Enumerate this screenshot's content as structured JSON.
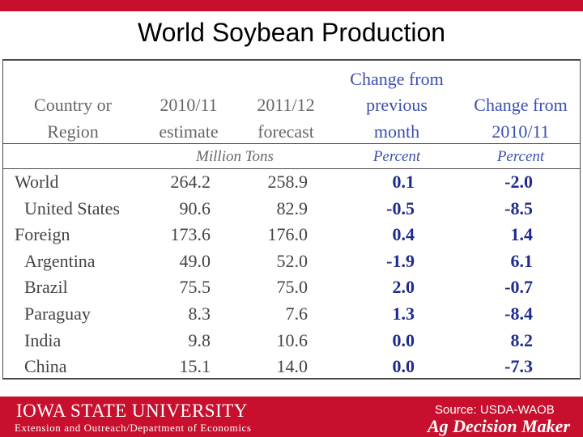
{
  "title": "World Soybean Production",
  "table": {
    "headers": {
      "region": [
        "Country or",
        "Region"
      ],
      "y2010": [
        "2010/11",
        "estimate"
      ],
      "y2011": [
        "2011/12",
        "forecast"
      ],
      "chg_month": [
        "Change from",
        "previous",
        "month"
      ],
      "chg_year": [
        "Change from",
        "2010/11"
      ]
    },
    "units": {
      "million_tons": "Million Tons",
      "percent_month": "Percent",
      "percent_year": "Percent"
    },
    "rows": [
      {
        "region": "World",
        "estimate": "264.2",
        "forecast": "258.9",
        "chg_month": "0.1",
        "chg_year": "-2.0"
      },
      {
        "region": "United States",
        "estimate": "90.6",
        "forecast": "82.9",
        "chg_month": "-0.5",
        "chg_year": "-8.5"
      },
      {
        "region": "Foreign",
        "estimate": "173.6",
        "forecast": "176.0",
        "chg_month": "0.4",
        "chg_year": "1.4"
      },
      {
        "region": "Argentina",
        "estimate": "49.0",
        "forecast": "52.0",
        "chg_month": "-1.9",
        "chg_year": "6.1"
      },
      {
        "region": "Brazil",
        "estimate": "75.5",
        "forecast": "75.0",
        "chg_month": "2.0",
        "chg_year": "-0.7"
      },
      {
        "region": "Paraguay",
        "estimate": "8.3",
        "forecast": "7.6",
        "chg_month": "1.3",
        "chg_year": "-8.4"
      },
      {
        "region": "India",
        "estimate": "9.8",
        "forecast": "10.6",
        "chg_month": "0.0",
        "chg_year": "8.2"
      },
      {
        "region": "China",
        "estimate": "15.1",
        "forecast": "14.0",
        "chg_month": "0.0",
        "chg_year": "-7.3"
      }
    ]
  },
  "footer": {
    "university": "IOWA STATE UNIVERSITY",
    "department": "Extension and Outreach/Department of Economics",
    "source": "Source: USDA-WAOB",
    "brand": "Ag Decision Maker"
  },
  "colors": {
    "accent_red": "#c8102e",
    "header_blue": "#3a4fb0",
    "value_navy": "#1e2a90"
  }
}
